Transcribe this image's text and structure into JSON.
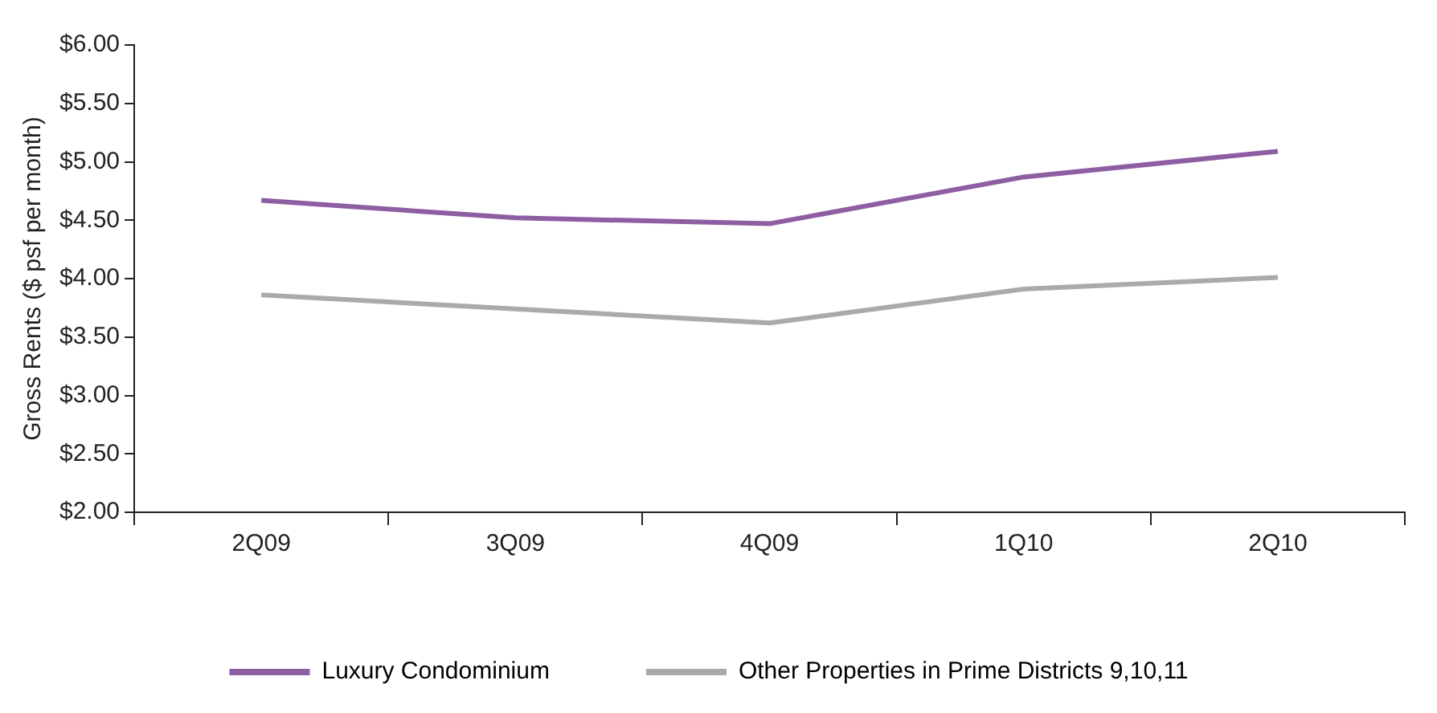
{
  "chart_data": {
    "type": "line",
    "ylabel": "Gross Rents ($ psf per month)",
    "categories": [
      "2Q09",
      "3Q09",
      "4Q09",
      "1Q10",
      "2Q10"
    ],
    "series": [
      {
        "name": "Luxury Condominium",
        "color": "#8e5ea2",
        "values": [
          4.67,
          4.52,
          4.47,
          4.87,
          5.09
        ]
      },
      {
        "name": "Other Properties in Prime Districts 9,10,11",
        "color": "#aaaaaa",
        "values": [
          3.86,
          3.74,
          3.62,
          3.91,
          4.01
        ]
      }
    ],
    "ylim": [
      2,
      6
    ],
    "yticks": [
      {
        "value": 2,
        "label": "$2.00"
      },
      {
        "value": 2.5,
        "label": "$2.50"
      },
      {
        "value": 3,
        "label": "$3.00"
      },
      {
        "value": 3.5,
        "label": "$3.50"
      },
      {
        "value": 4,
        "label": "$4.00"
      },
      {
        "value": 4.5,
        "label": "$4.50"
      },
      {
        "value": 5,
        "label": "$5.00"
      },
      {
        "value": 5.5,
        "label": "$5.50"
      },
      {
        "value": 6,
        "label": "$6.00"
      }
    ],
    "grid": false,
    "legend": "bottom",
    "marker": "none"
  }
}
